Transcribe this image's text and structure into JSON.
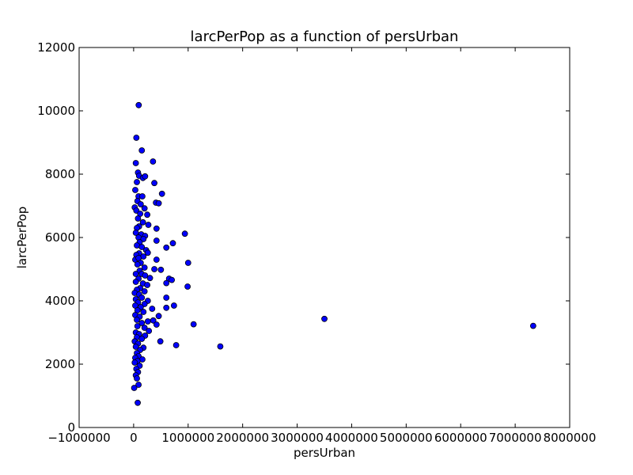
{
  "chart_data": {
    "type": "scatter",
    "title": "larcPerPop as a function of persUrban",
    "xlabel": "persUrban",
    "ylabel": "larcPerPop",
    "xlim": [
      -1000000,
      8000000
    ],
    "ylim": [
      0,
      12000
    ],
    "xticks": [
      -1000000,
      0,
      1000000,
      2000000,
      3000000,
      4000000,
      5000000,
      6000000,
      7000000,
      8000000
    ],
    "xtick_labels": [
      "−1000000",
      "0",
      "1000000",
      "2000000",
      "3000000",
      "4000000",
      "5000000",
      "6000000",
      "7000000",
      "8000000"
    ],
    "yticks": [
      0,
      2000,
      4000,
      6000,
      8000,
      10000,
      12000
    ],
    "ytick_labels": [
      "0",
      "2000",
      "4000",
      "6000",
      "8000",
      "10000",
      "12000"
    ],
    "grid": false,
    "marker_color": "#0000ff",
    "series": [
      {
        "points": [
          [
            93000,
            10180
          ],
          [
            50000,
            9150
          ],
          [
            150000,
            8750
          ],
          [
            40000,
            8350
          ],
          [
            355000,
            8400
          ],
          [
            80000,
            8050
          ],
          [
            100000,
            7950
          ],
          [
            170000,
            7880
          ],
          [
            210000,
            7930
          ],
          [
            60000,
            7750
          ],
          [
            380000,
            7720
          ],
          [
            520000,
            7380
          ],
          [
            30000,
            7500
          ],
          [
            90000,
            7300
          ],
          [
            160000,
            7300
          ],
          [
            410000,
            7100
          ],
          [
            460000,
            7080
          ],
          [
            70000,
            7150
          ],
          [
            130000,
            7050
          ],
          [
            200000,
            6920
          ],
          [
            20000,
            6950
          ],
          [
            50000,
            6850
          ],
          [
            120000,
            6750
          ],
          [
            250000,
            6720
          ],
          [
            80000,
            6600
          ],
          [
            170000,
            6480
          ],
          [
            270000,
            6400
          ],
          [
            100000,
            6350
          ],
          [
            60000,
            6300
          ],
          [
            420000,
            6280
          ],
          [
            940000,
            6120
          ],
          [
            40000,
            6150
          ],
          [
            140000,
            6100
          ],
          [
            210000,
            6050
          ],
          [
            90000,
            6000
          ],
          [
            180000,
            5950
          ],
          [
            420000,
            5900
          ],
          [
            720000,
            5820
          ],
          [
            110000,
            5850
          ],
          [
            60000,
            5750
          ],
          [
            600000,
            5680
          ],
          [
            150000,
            5700
          ],
          [
            230000,
            5600
          ],
          [
            260000,
            5520
          ],
          [
            100000,
            5500
          ],
          [
            50000,
            5450
          ],
          [
            180000,
            5400
          ],
          [
            30000,
            5300
          ],
          [
            90000,
            5350
          ],
          [
            420000,
            5300
          ],
          [
            1000000,
            5200
          ],
          [
            130000,
            5200
          ],
          [
            70000,
            5150
          ],
          [
            200000,
            5050
          ],
          [
            380000,
            5000
          ],
          [
            500000,
            4980
          ],
          [
            110000,
            4950
          ],
          [
            40000,
            4850
          ],
          [
            150000,
            4850
          ],
          [
            210000,
            4800
          ],
          [
            300000,
            4720
          ],
          [
            650000,
            4700
          ],
          [
            700000,
            4660
          ],
          [
            90000,
            4700
          ],
          [
            600000,
            4560
          ],
          [
            40000,
            4600
          ],
          [
            170000,
            4550
          ],
          [
            250000,
            4500
          ],
          [
            990000,
            4450
          ],
          [
            120000,
            4400
          ],
          [
            60000,
            4350
          ],
          [
            200000,
            4300
          ],
          [
            20000,
            4250
          ],
          [
            100000,
            4200
          ],
          [
            600000,
            4100
          ],
          [
            150000,
            4100
          ],
          [
            40000,
            4050
          ],
          [
            260000,
            4000
          ],
          [
            80000,
            3950
          ],
          [
            200000,
            3900
          ],
          [
            740000,
            3850
          ],
          [
            30000,
            3850
          ],
          [
            600000,
            3780
          ],
          [
            130000,
            3800
          ],
          [
            340000,
            3750
          ],
          [
            70000,
            3700
          ],
          [
            180000,
            3650
          ],
          [
            460000,
            3520
          ],
          [
            30000,
            3550
          ],
          [
            110000,
            3500
          ],
          [
            3500000,
            3430
          ],
          [
            60000,
            3400
          ],
          [
            360000,
            3380
          ],
          [
            260000,
            3350
          ],
          [
            150000,
            3300
          ],
          [
            420000,
            3250
          ],
          [
            1100000,
            3260
          ],
          [
            7330000,
            3210
          ],
          [
            70000,
            3200
          ],
          [
            200000,
            3150
          ],
          [
            280000,
            3050
          ],
          [
            40000,
            3000
          ],
          [
            100000,
            2950
          ],
          [
            210000,
            2900
          ],
          [
            60000,
            2850
          ],
          [
            150000,
            2800
          ],
          [
            20000,
            2720
          ],
          [
            490000,
            2720
          ],
          [
            80000,
            2650
          ],
          [
            780000,
            2600
          ],
          [
            1590000,
            2560
          ],
          [
            180000,
            2520
          ],
          [
            40000,
            2550
          ],
          [
            120000,
            2450
          ],
          [
            60000,
            2350
          ],
          [
            90000,
            2250
          ],
          [
            30000,
            2200
          ],
          [
            160000,
            2150
          ],
          [
            70000,
            2100
          ],
          [
            20000,
            2050
          ],
          [
            110000,
            1950
          ],
          [
            50000,
            1850
          ],
          [
            80000,
            1750
          ],
          [
            40000,
            1650
          ],
          [
            60000,
            1550
          ],
          [
            90000,
            1350
          ],
          [
            10000,
            1250
          ],
          [
            75000,
            780
          ]
        ]
      }
    ]
  }
}
